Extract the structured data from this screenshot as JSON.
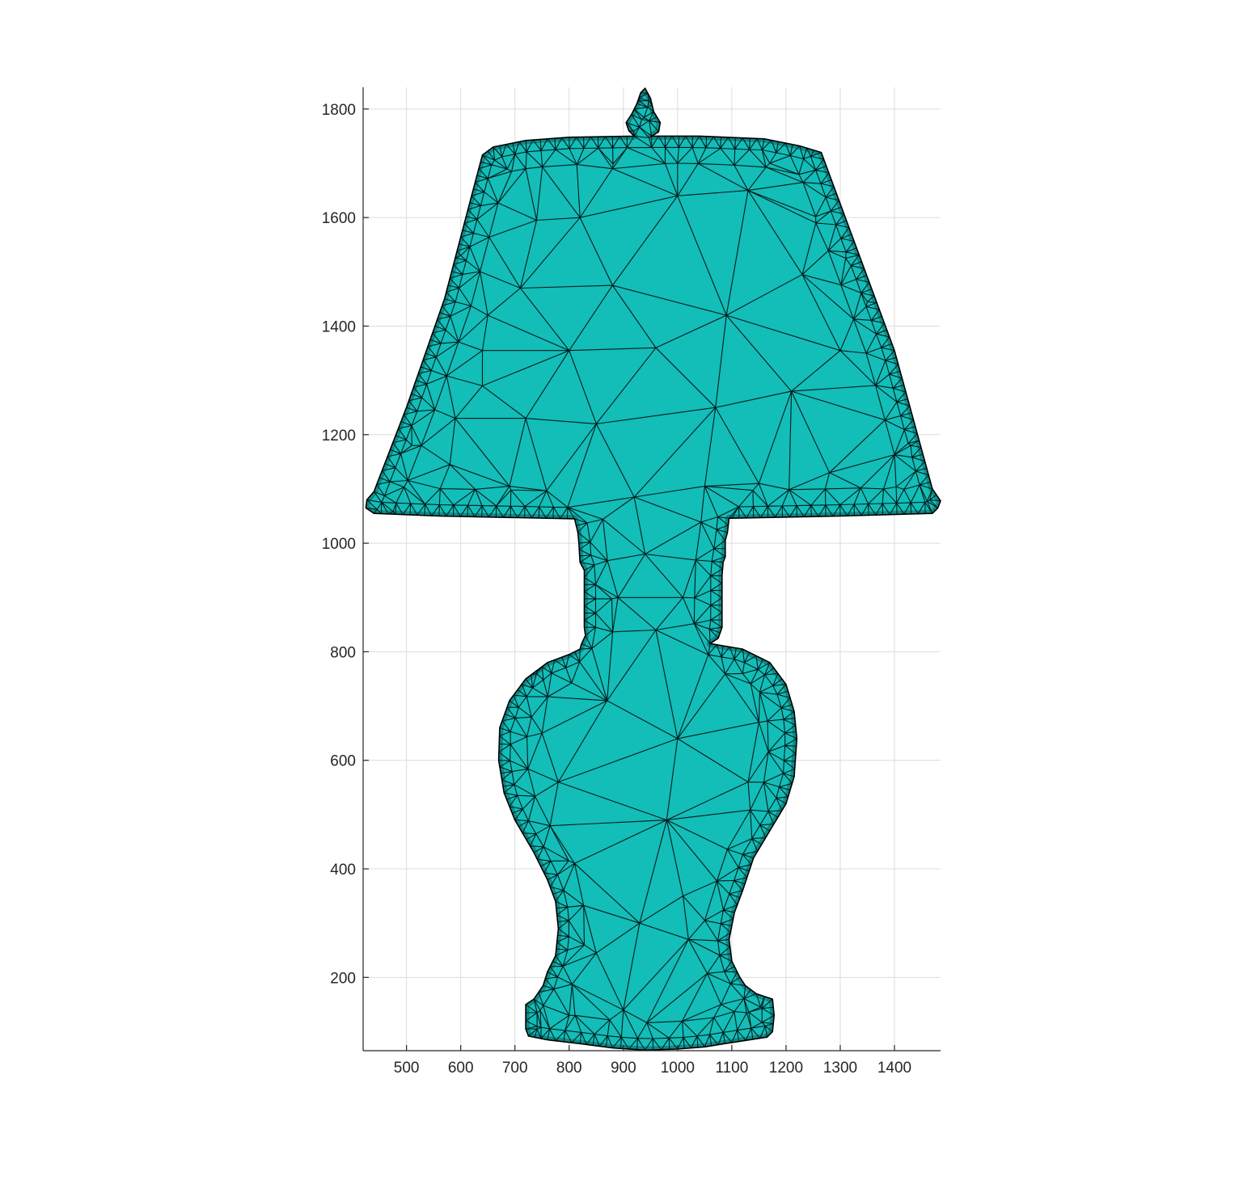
{
  "figure": {
    "x_ticks": [
      "500",
      "600",
      "700",
      "800",
      "900",
      "1000",
      "1100",
      "1200",
      "1300",
      "1400"
    ],
    "y_ticks": [
      "200",
      "400",
      "600",
      "800",
      "1000",
      "1200",
      "1400",
      "1600",
      "1800"
    ]
  },
  "chart_data": {
    "type": "mesh",
    "shape": "table lamp silhouette (triangulated mesh)",
    "xlim": [
      420,
      1485
    ],
    "ylim": [
      65,
      1840
    ],
    "x_ticks": [
      500,
      600,
      700,
      800,
      900,
      1000,
      1100,
      1200,
      1300,
      1400
    ],
    "y_ticks": [
      200,
      400,
      600,
      800,
      1000,
      1200,
      1400,
      1600,
      1800
    ],
    "grid": true,
    "legend": "none",
    "colors": {
      "face": "#13BDB8",
      "edge": "#000000",
      "grid": "#dcdcdc",
      "axis": "#262626"
    },
    "outline": [
      [
        940,
        1838
      ],
      [
        950,
        1820
      ],
      [
        956,
        1795
      ],
      [
        968,
        1775
      ],
      [
        965,
        1758
      ],
      [
        952,
        1750
      ],
      [
        1040,
        1750
      ],
      [
        1160,
        1745
      ],
      [
        1225,
        1732
      ],
      [
        1265,
        1720
      ],
      [
        1400,
        1355
      ],
      [
        1470,
        1100
      ],
      [
        1485,
        1078
      ],
      [
        1480,
        1065
      ],
      [
        1470,
        1055
      ],
      [
        1300,
        1050
      ],
      [
        1100,
        1046
      ],
      [
        1095,
        1046
      ],
      [
        1092,
        1020
      ],
      [
        1088,
        1005
      ],
      [
        1088,
        975
      ],
      [
        1084,
        965
      ],
      [
        1082,
        940
      ],
      [
        1082,
        845
      ],
      [
        1075,
        825
      ],
      [
        1060,
        815
      ],
      [
        1120,
        805
      ],
      [
        1170,
        780
      ],
      [
        1200,
        740
      ],
      [
        1215,
        690
      ],
      [
        1220,
        640
      ],
      [
        1215,
        570
      ],
      [
        1200,
        520
      ],
      [
        1170,
        470
      ],
      [
        1140,
        420
      ],
      [
        1120,
        360
      ],
      [
        1105,
        320
      ],
      [
        1095,
        270
      ],
      [
        1100,
        230
      ],
      [
        1115,
        200
      ],
      [
        1125,
        185
      ],
      [
        1145,
        170
      ],
      [
        1175,
        160
      ],
      [
        1178,
        130
      ],
      [
        1175,
        100
      ],
      [
        1165,
        90
      ],
      [
        1100,
        80
      ],
      [
        1050,
        72
      ],
      [
        1000,
        68
      ],
      [
        940,
        66
      ],
      [
        880,
        70
      ],
      [
        820,
        78
      ],
      [
        760,
        85
      ],
      [
        725,
        92
      ],
      [
        720,
        105
      ],
      [
        720,
        150
      ],
      [
        735,
        160
      ],
      [
        752,
        185
      ],
      [
        760,
        210
      ],
      [
        775,
        240
      ],
      [
        780,
        290
      ],
      [
        775,
        340
      ],
      [
        760,
        380
      ],
      [
        735,
        430
      ],
      [
        700,
        490
      ],
      [
        680,
        540
      ],
      [
        670,
        600
      ],
      [
        672,
        660
      ],
      [
        690,
        710
      ],
      [
        720,
        750
      ],
      [
        760,
        780
      ],
      [
        800,
        795
      ],
      [
        820,
        805
      ],
      [
        823,
        815
      ],
      [
        830,
        830
      ],
      [
        828,
        845
      ],
      [
        828,
        950
      ],
      [
        820,
        965
      ],
      [
        818,
        1000
      ],
      [
        816,
        1020
      ],
      [
        810,
        1045
      ],
      [
        560,
        1050
      ],
      [
        440,
        1055
      ],
      [
        425,
        1065
      ],
      [
        427,
        1080
      ],
      [
        440,
        1095
      ],
      [
        500,
        1250
      ],
      [
        570,
        1450
      ],
      [
        620,
        1640
      ],
      [
        640,
        1715
      ],
      [
        660,
        1730
      ],
      [
        720,
        1742
      ],
      [
        800,
        1748
      ],
      [
        920,
        1750
      ],
      [
        910,
        1760
      ],
      [
        905,
        1775
      ],
      [
        915,
        1790
      ],
      [
        925,
        1810
      ],
      [
        932,
        1830
      ]
    ],
    "interior_nodes": [
      [
        880,
        1475
      ],
      [
        1230,
        1495
      ],
      [
        1070,
        1250
      ],
      [
        850,
        1220
      ],
      [
        640,
        1290
      ],
      [
        640,
        1355
      ],
      [
        800,
        1355
      ],
      [
        740,
        1595
      ],
      [
        1000,
        1640
      ],
      [
        1300,
        1355
      ],
      [
        1350,
        1445
      ],
      [
        1310,
        1525
      ],
      [
        1255,
        1590
      ],
      [
        1130,
        1650
      ],
      [
        820,
        1600
      ],
      [
        710,
        1470
      ],
      [
        600,
        1530
      ],
      [
        650,
        1420
      ],
      [
        580,
        1145
      ],
      [
        690,
        1105
      ],
      [
        920,
        1085
      ],
      [
        1050,
        1105
      ],
      [
        1150,
        1110
      ],
      [
        1280,
        1130
      ],
      [
        1380,
        1100
      ],
      [
        1210,
        1280
      ],
      [
        1430,
        1180
      ],
      [
        510,
        1180
      ],
      [
        590,
        1230
      ],
      [
        720,
        1230
      ],
      [
        960,
        1360
      ],
      [
        1090,
        1420
      ],
      [
        880,
        1690
      ],
      [
        1000,
        1700
      ],
      [
        1170,
        1700
      ],
      [
        720,
        1690
      ],
      [
        940,
        980
      ],
      [
        1010,
        900
      ],
      [
        890,
        900
      ],
      [
        960,
        840
      ],
      [
        1000,
        640
      ],
      [
        870,
        710
      ],
      [
        980,
        490
      ],
      [
        1150,
        670
      ],
      [
        1130,
        560
      ],
      [
        780,
        560
      ],
      [
        750,
        650
      ],
      [
        810,
        410
      ],
      [
        1010,
        350
      ],
      [
        930,
        300
      ],
      [
        1020,
        270
      ],
      [
        850,
        245
      ],
      [
        800,
        130
      ],
      [
        900,
        140
      ],
      [
        1080,
        150
      ],
      [
        740,
        760
      ],
      [
        1120,
        760
      ],
      [
        700,
        440
      ],
      [
        1160,
        420
      ]
    ]
  }
}
